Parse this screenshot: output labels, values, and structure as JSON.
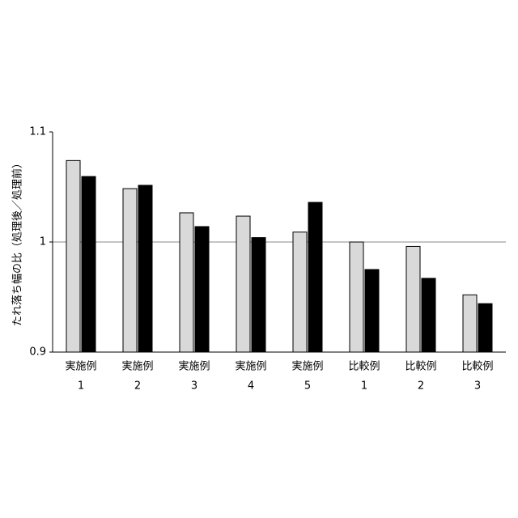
{
  "chart_data": {
    "type": "bar",
    "y_label": "たれ落ち幅の比（処理後／処理前）",
    "categories": [
      [
        "実施例",
        "1"
      ],
      [
        "実施例",
        "2"
      ],
      [
        "実施例",
        "3"
      ],
      [
        "実施例",
        "4"
      ],
      [
        "実施例",
        "5"
      ],
      [
        "比較例",
        "1"
      ],
      [
        "比較例",
        "2"
      ],
      [
        "比較例",
        "3"
      ]
    ],
    "series": [
      {
        "color": "#d9d9d9",
        "values": [
          1.074,
          1.0485,
          1.0265,
          1.0235,
          1.009,
          1.0,
          0.996,
          0.952
        ]
      },
      {
        "color": "#000000",
        "values": [
          1.0595,
          1.0515,
          1.014,
          1.004,
          1.036,
          0.975,
          0.967,
          0.944
        ]
      }
    ],
    "ylim": [
      0.9,
      1.1
    ],
    "yticks": [
      0.9,
      1,
      1.1
    ],
    "reference_line": 1
  }
}
